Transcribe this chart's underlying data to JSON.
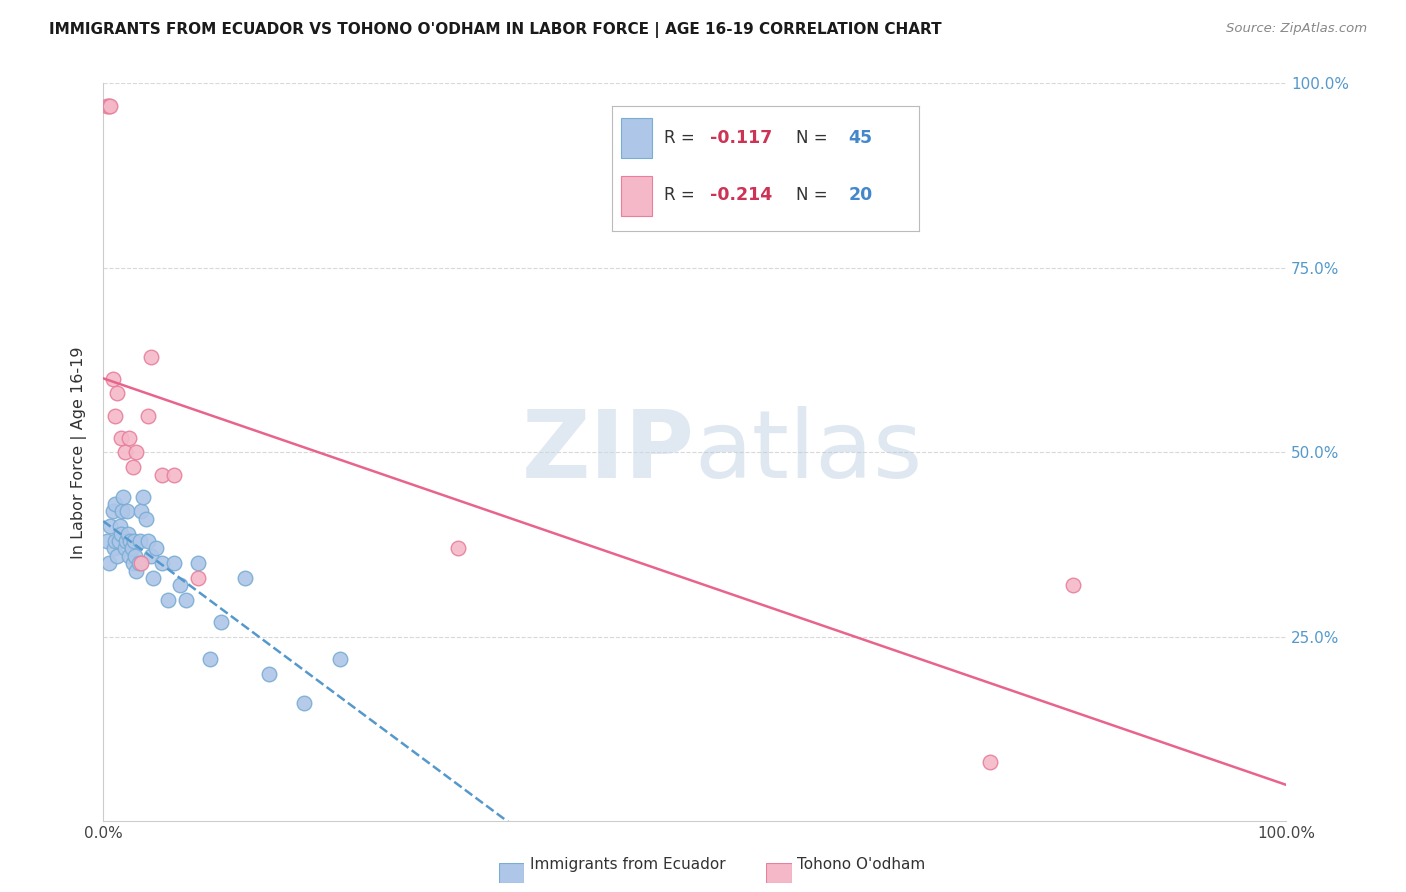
{
  "title": "IMMIGRANTS FROM ECUADOR VS TOHONO O'ODHAM IN LABOR FORCE | AGE 16-19 CORRELATION CHART",
  "source": "Source: ZipAtlas.com",
  "ylabel": "In Labor Force | Age 16-19",
  "xlim": [
    0,
    1.0
  ],
  "ylim": [
    0,
    1.0
  ],
  "ytick_values": [
    0.25,
    0.5,
    0.75,
    1.0
  ],
  "ytick_labels": [
    "25.0%",
    "50.0%",
    "75.0%",
    "100.0%"
  ],
  "ecuador_color": "#aec6e8",
  "ecuador_edge_color": "#7aadd4",
  "tohono_color": "#f4b8c8",
  "tohono_edge_color": "#e87f9c",
  "trendline_ecuador_color": "#5599cc",
  "trendline_tohono_color": "#e8648c",
  "legend_R_ecuador": "-0.117",
  "legend_N_ecuador": "45",
  "legend_R_tohono": "-0.214",
  "legend_N_tohono": "20",
  "ecuador_x": [
    0.003,
    0.005,
    0.006,
    0.008,
    0.009,
    0.01,
    0.01,
    0.012,
    0.013,
    0.014,
    0.015,
    0.016,
    0.017,
    0.018,
    0.019,
    0.02,
    0.021,
    0.022,
    0.023,
    0.024,
    0.025,
    0.026,
    0.027,
    0.028,
    0.03,
    0.031,
    0.032,
    0.034,
    0.036,
    0.038,
    0.04,
    0.042,
    0.045,
    0.05,
    0.055,
    0.06,
    0.065,
    0.07,
    0.08,
    0.09,
    0.1,
    0.12,
    0.14,
    0.17,
    0.2
  ],
  "ecuador_y": [
    0.38,
    0.35,
    0.4,
    0.42,
    0.37,
    0.38,
    0.43,
    0.36,
    0.38,
    0.4,
    0.39,
    0.42,
    0.44,
    0.37,
    0.38,
    0.42,
    0.39,
    0.36,
    0.38,
    0.37,
    0.35,
    0.38,
    0.36,
    0.34,
    0.35,
    0.38,
    0.42,
    0.44,
    0.41,
    0.38,
    0.36,
    0.33,
    0.37,
    0.35,
    0.3,
    0.35,
    0.32,
    0.3,
    0.35,
    0.22,
    0.27,
    0.33,
    0.2,
    0.16,
    0.22
  ],
  "tohono_x": [
    0.003,
    0.005,
    0.006,
    0.008,
    0.01,
    0.012,
    0.015,
    0.018,
    0.022,
    0.025,
    0.028,
    0.032,
    0.038,
    0.04,
    0.05,
    0.06,
    0.08,
    0.3,
    0.75,
    0.82
  ],
  "tohono_y": [
    0.97,
    0.97,
    0.97,
    0.6,
    0.55,
    0.58,
    0.52,
    0.5,
    0.52,
    0.48,
    0.5,
    0.35,
    0.55,
    0.63,
    0.47,
    0.47,
    0.33,
    0.37,
    0.08,
    0.32
  ],
  "watermark_zip": "ZIP",
  "watermark_atlas": "atlas",
  "background_color": "#ffffff",
  "grid_color": "#d8d8d8",
  "right_tick_color": "#5599cc"
}
